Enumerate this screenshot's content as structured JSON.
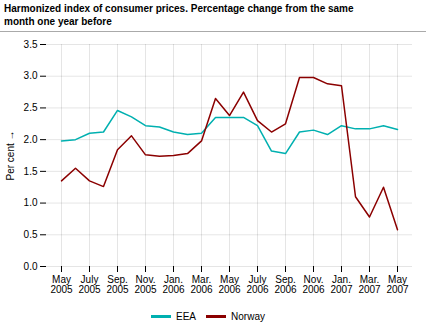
{
  "chart_data": {
    "type": "line",
    "title": "Harmonized index of consumer prices. Percentage change from the same\nmonth one year before",
    "ylabel": "Per cent",
    "categories": [
      "May\n2005",
      null,
      "July\n2005",
      null,
      "Sep.\n2005",
      null,
      "Nov.\n2005",
      null,
      "Jan.\n2006",
      null,
      "Mar.\n2006",
      null,
      "May\n2006",
      null,
      "July\n2006",
      null,
      "Sep.\n2006",
      null,
      "Nov.\n2006",
      null,
      "Jan.\n2007",
      null,
      "Mar.\n2007",
      null,
      "May\n2007"
    ],
    "series": [
      {
        "name": "EEA",
        "color": "#00b0b0",
        "values": [
          1.98,
          2.0,
          2.1,
          2.12,
          2.46,
          2.36,
          2.22,
          2.2,
          2.12,
          2.08,
          2.1,
          2.35,
          2.35,
          2.35,
          2.22,
          1.82,
          1.78,
          2.12,
          2.15,
          2.08,
          2.22,
          2.17,
          2.17,
          2.22,
          2.16
        ]
      },
      {
        "name": "Norway",
        "color": "#8b0000",
        "values": [
          1.35,
          1.55,
          1.35,
          1.26,
          1.84,
          2.06,
          1.76,
          1.74,
          1.75,
          1.78,
          1.98,
          2.65,
          2.38,
          2.75,
          2.3,
          2.12,
          2.25,
          2.98,
          2.98,
          2.88,
          2.85,
          1.1,
          0.78,
          1.25,
          0.58
        ]
      }
    ],
    "ylim": [
      0.0,
      3.5
    ],
    "yticks": [
      {
        "value": 0,
        "label": "0.0"
      },
      0.5,
      {
        "value": 1,
        "label": "1.0"
      },
      1.5,
      {
        "value": 2,
        "label": "2.0"
      },
      2.5,
      {
        "value": 3,
        "label": "3.0"
      },
      3.5
    ],
    "grid": true,
    "legend": "bottom"
  }
}
